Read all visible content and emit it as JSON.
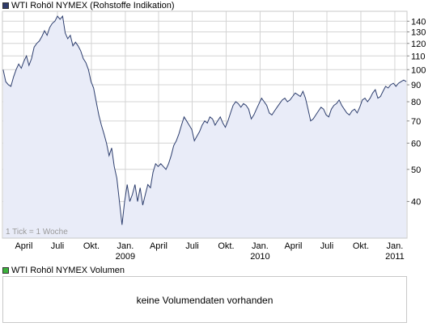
{
  "price_legend": "WTI Rohöl NYMEX (Rohstoffe Indikation)",
  "volume_legend": "WTI Rohöl NYMEX Volumen",
  "tick_note": "1 Tick = 1 Woche",
  "volume_message": "keine Volumendaten vorhanden",
  "colors": {
    "line": "#2d3e6e",
    "area": "#e9ecf8",
    "grid": "#d4d4d4",
    "price_swatch": "#2f3b6b",
    "volume_swatch": "#3cb33c"
  },
  "chart_data": {
    "type": "area",
    "title": "WTI Rohöl NYMEX (Rohstoffe Indikation)",
    "y_scale": "log",
    "ylim": [
      31,
      150
    ],
    "y_ticks": [
      40,
      50,
      60,
      70,
      80,
      90,
      100,
      110,
      120,
      130,
      140
    ],
    "x_ticks": [
      {
        "label": "April",
        "year": "",
        "x": "2008-04-01"
      },
      {
        "label": "Juli",
        "year": "",
        "x": "2008-07-01"
      },
      {
        "label": "Okt.",
        "year": "",
        "x": "2008-10-01"
      },
      {
        "label": "Jan.",
        "year": "2009",
        "x": "2009-01-01"
      },
      {
        "label": "April",
        "year": "",
        "x": "2009-04-01"
      },
      {
        "label": "Juli",
        "year": "",
        "x": "2009-07-01"
      },
      {
        "label": "Okt.",
        "year": "",
        "x": "2009-10-01"
      },
      {
        "label": "Jan.",
        "year": "2010",
        "x": "2010-01-01"
      },
      {
        "label": "April",
        "year": "",
        "x": "2010-04-01"
      },
      {
        "label": "Juli",
        "year": "",
        "x": "2010-07-01"
      },
      {
        "label": "Okt.",
        "year": "",
        "x": "2010-10-01"
      },
      {
        "label": "Jan.",
        "year": "2011",
        "x": "2011-01-01"
      }
    ],
    "grid": true,
    "series": [
      {
        "points": [
          [
            "2008-02-05",
            100
          ],
          [
            "2008-02-12",
            92
          ],
          [
            "2008-02-19",
            90
          ],
          [
            "2008-02-26",
            89
          ],
          [
            "2008-03-04",
            95
          ],
          [
            "2008-03-11",
            100
          ],
          [
            "2008-03-18",
            104
          ],
          [
            "2008-03-25",
            101
          ],
          [
            "2008-04-01",
            106
          ],
          [
            "2008-04-08",
            110
          ],
          [
            "2008-04-15",
            103
          ],
          [
            "2008-04-22",
            108
          ],
          [
            "2008-04-29",
            117
          ],
          [
            "2008-05-06",
            120
          ],
          [
            "2008-05-13",
            122
          ],
          [
            "2008-05-20",
            126
          ],
          [
            "2008-05-27",
            131
          ],
          [
            "2008-06-03",
            127
          ],
          [
            "2008-06-10",
            134
          ],
          [
            "2008-06-17",
            138
          ],
          [
            "2008-06-24",
            140
          ],
          [
            "2008-07-01",
            145
          ],
          [
            "2008-07-08",
            142
          ],
          [
            "2008-07-15",
            145
          ],
          [
            "2008-07-22",
            129
          ],
          [
            "2008-07-29",
            124
          ],
          [
            "2008-08-05",
            127
          ],
          [
            "2008-08-12",
            118
          ],
          [
            "2008-08-19",
            121
          ],
          [
            "2008-08-26",
            118
          ],
          [
            "2008-09-02",
            114
          ],
          [
            "2008-09-09",
            108
          ],
          [
            "2008-09-16",
            105
          ],
          [
            "2008-09-23",
            100
          ],
          [
            "2008-09-30",
            92
          ],
          [
            "2008-10-07",
            88
          ],
          [
            "2008-10-14",
            80
          ],
          [
            "2008-10-21",
            73
          ],
          [
            "2008-10-28",
            68
          ],
          [
            "2008-11-04",
            64
          ],
          [
            "2008-11-11",
            60
          ],
          [
            "2008-11-18",
            55
          ],
          [
            "2008-11-25",
            58
          ],
          [
            "2008-12-02",
            51
          ],
          [
            "2008-12-09",
            47
          ],
          [
            "2008-12-16",
            40
          ],
          [
            "2008-12-23",
            34
          ],
          [
            "2008-12-30",
            40
          ],
          [
            "2009-01-06",
            45
          ],
          [
            "2009-01-13",
            40
          ],
          [
            "2009-01-20",
            42
          ],
          [
            "2009-01-27",
            45
          ],
          [
            "2009-02-03",
            40
          ],
          [
            "2009-02-10",
            44
          ],
          [
            "2009-02-17",
            39
          ],
          [
            "2009-02-24",
            42
          ],
          [
            "2009-03-03",
            45
          ],
          [
            "2009-03-10",
            44
          ],
          [
            "2009-03-17",
            49
          ],
          [
            "2009-03-24",
            52
          ],
          [
            "2009-03-31",
            51
          ],
          [
            "2009-04-07",
            52
          ],
          [
            "2009-04-14",
            51
          ],
          [
            "2009-04-21",
            50
          ],
          [
            "2009-04-28",
            52
          ],
          [
            "2009-05-05",
            55
          ],
          [
            "2009-05-12",
            59
          ],
          [
            "2009-05-19",
            61
          ],
          [
            "2009-05-26",
            64
          ],
          [
            "2009-06-02",
            68
          ],
          [
            "2009-06-09",
            72
          ],
          [
            "2009-06-16",
            70
          ],
          [
            "2009-06-23",
            68
          ],
          [
            "2009-06-30",
            66
          ],
          [
            "2009-07-07",
            61
          ],
          [
            "2009-07-14",
            63
          ],
          [
            "2009-07-21",
            65
          ],
          [
            "2009-07-28",
            68
          ],
          [
            "2009-08-04",
            70
          ],
          [
            "2009-08-11",
            69
          ],
          [
            "2009-08-18",
            72
          ],
          [
            "2009-08-25",
            71
          ],
          [
            "2009-09-01",
            68
          ],
          [
            "2009-09-08",
            70
          ],
          [
            "2009-09-15",
            72
          ],
          [
            "2009-09-22",
            69
          ],
          [
            "2009-09-29",
            67
          ],
          [
            "2009-10-06",
            70
          ],
          [
            "2009-10-13",
            74
          ],
          [
            "2009-10-20",
            78
          ],
          [
            "2009-10-27",
            80
          ],
          [
            "2009-11-03",
            79
          ],
          [
            "2009-11-10",
            77
          ],
          [
            "2009-11-17",
            79
          ],
          [
            "2009-11-24",
            78
          ],
          [
            "2009-12-01",
            76
          ],
          [
            "2009-12-08",
            71
          ],
          [
            "2009-12-15",
            73
          ],
          [
            "2009-12-22",
            76
          ],
          [
            "2009-12-29",
            79
          ],
          [
            "2010-01-05",
            82
          ],
          [
            "2010-01-12",
            80
          ],
          [
            "2010-01-19",
            78
          ],
          [
            "2010-01-26",
            74
          ],
          [
            "2010-02-02",
            73
          ],
          [
            "2010-02-09",
            75
          ],
          [
            "2010-02-16",
            77
          ],
          [
            "2010-02-23",
            79
          ],
          [
            "2010-03-02",
            81
          ],
          [
            "2010-03-09",
            82
          ],
          [
            "2010-03-16",
            80
          ],
          [
            "2010-03-23",
            81
          ],
          [
            "2010-03-30",
            83
          ],
          [
            "2010-04-06",
            85
          ],
          [
            "2010-04-13",
            84
          ],
          [
            "2010-04-20",
            83
          ],
          [
            "2010-04-27",
            86
          ],
          [
            "2010-05-04",
            82
          ],
          [
            "2010-05-11",
            76
          ],
          [
            "2010-05-18",
            70
          ],
          [
            "2010-05-25",
            71
          ],
          [
            "2010-06-01",
            73
          ],
          [
            "2010-06-08",
            75
          ],
          [
            "2010-06-15",
            77
          ],
          [
            "2010-06-22",
            76
          ],
          [
            "2010-06-29",
            73
          ],
          [
            "2010-07-06",
            72
          ],
          [
            "2010-07-13",
            76
          ],
          [
            "2010-07-20",
            78
          ],
          [
            "2010-07-27",
            79
          ],
          [
            "2010-08-03",
            81
          ],
          [
            "2010-08-10",
            78
          ],
          [
            "2010-08-17",
            76
          ],
          [
            "2010-08-24",
            74
          ],
          [
            "2010-08-31",
            73
          ],
          [
            "2010-09-07",
            75
          ],
          [
            "2010-09-14",
            76
          ],
          [
            "2010-09-21",
            74
          ],
          [
            "2010-09-28",
            77
          ],
          [
            "2010-10-05",
            81
          ],
          [
            "2010-10-12",
            82
          ],
          [
            "2010-10-19",
            80
          ],
          [
            "2010-10-26",
            82
          ],
          [
            "2010-11-02",
            85
          ],
          [
            "2010-11-09",
            87
          ],
          [
            "2010-11-16",
            82
          ],
          [
            "2010-11-23",
            83
          ],
          [
            "2010-11-30",
            86
          ],
          [
            "2010-12-07",
            89
          ],
          [
            "2010-12-14",
            88
          ],
          [
            "2010-12-21",
            90
          ],
          [
            "2010-12-28",
            91
          ],
          [
            "2011-01-04",
            89
          ],
          [
            "2011-01-11",
            91
          ],
          [
            "2011-01-18",
            92
          ],
          [
            "2011-01-25",
            93
          ],
          [
            "2011-02-01",
            92
          ]
        ]
      }
    ]
  }
}
